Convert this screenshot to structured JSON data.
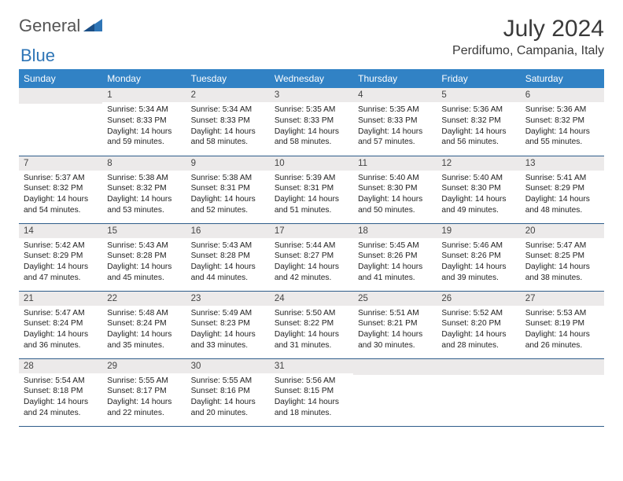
{
  "logo": {
    "text1": "General",
    "text2": "Blue"
  },
  "title": "July 2024",
  "location": "Perdifumo, Campania, Italy",
  "weekdays": [
    "Sunday",
    "Monday",
    "Tuesday",
    "Wednesday",
    "Thursday",
    "Friday",
    "Saturday"
  ],
  "colors": {
    "header_bg": "#3182c5",
    "header_text": "#ffffff",
    "band_bg": "#eceaea",
    "rule": "#2f5d8a",
    "logo_gray": "#555555",
    "logo_blue": "#2e75b6"
  },
  "grid": {
    "rows": 5,
    "cols": 7,
    "leading_blanks": 1,
    "days_in_month": 31
  },
  "days": {
    "1": {
      "sunrise": "5:34 AM",
      "sunset": "8:33 PM",
      "daylight": "14 hours and 59 minutes."
    },
    "2": {
      "sunrise": "5:34 AM",
      "sunset": "8:33 PM",
      "daylight": "14 hours and 58 minutes."
    },
    "3": {
      "sunrise": "5:35 AM",
      "sunset": "8:33 PM",
      "daylight": "14 hours and 58 minutes."
    },
    "4": {
      "sunrise": "5:35 AM",
      "sunset": "8:33 PM",
      "daylight": "14 hours and 57 minutes."
    },
    "5": {
      "sunrise": "5:36 AM",
      "sunset": "8:32 PM",
      "daylight": "14 hours and 56 minutes."
    },
    "6": {
      "sunrise": "5:36 AM",
      "sunset": "8:32 PM",
      "daylight": "14 hours and 55 minutes."
    },
    "7": {
      "sunrise": "5:37 AM",
      "sunset": "8:32 PM",
      "daylight": "14 hours and 54 minutes."
    },
    "8": {
      "sunrise": "5:38 AM",
      "sunset": "8:32 PM",
      "daylight": "14 hours and 53 minutes."
    },
    "9": {
      "sunrise": "5:38 AM",
      "sunset": "8:31 PM",
      "daylight": "14 hours and 52 minutes."
    },
    "10": {
      "sunrise": "5:39 AM",
      "sunset": "8:31 PM",
      "daylight": "14 hours and 51 minutes."
    },
    "11": {
      "sunrise": "5:40 AM",
      "sunset": "8:30 PM",
      "daylight": "14 hours and 50 minutes."
    },
    "12": {
      "sunrise": "5:40 AM",
      "sunset": "8:30 PM",
      "daylight": "14 hours and 49 minutes."
    },
    "13": {
      "sunrise": "5:41 AM",
      "sunset": "8:29 PM",
      "daylight": "14 hours and 48 minutes."
    },
    "14": {
      "sunrise": "5:42 AM",
      "sunset": "8:29 PM",
      "daylight": "14 hours and 47 minutes."
    },
    "15": {
      "sunrise": "5:43 AM",
      "sunset": "8:28 PM",
      "daylight": "14 hours and 45 minutes."
    },
    "16": {
      "sunrise": "5:43 AM",
      "sunset": "8:28 PM",
      "daylight": "14 hours and 44 minutes."
    },
    "17": {
      "sunrise": "5:44 AM",
      "sunset": "8:27 PM",
      "daylight": "14 hours and 42 minutes."
    },
    "18": {
      "sunrise": "5:45 AM",
      "sunset": "8:26 PM",
      "daylight": "14 hours and 41 minutes."
    },
    "19": {
      "sunrise": "5:46 AM",
      "sunset": "8:26 PM",
      "daylight": "14 hours and 39 minutes."
    },
    "20": {
      "sunrise": "5:47 AM",
      "sunset": "8:25 PM",
      "daylight": "14 hours and 38 minutes."
    },
    "21": {
      "sunrise": "5:47 AM",
      "sunset": "8:24 PM",
      "daylight": "14 hours and 36 minutes."
    },
    "22": {
      "sunrise": "5:48 AM",
      "sunset": "8:24 PM",
      "daylight": "14 hours and 35 minutes."
    },
    "23": {
      "sunrise": "5:49 AM",
      "sunset": "8:23 PM",
      "daylight": "14 hours and 33 minutes."
    },
    "24": {
      "sunrise": "5:50 AM",
      "sunset": "8:22 PM",
      "daylight": "14 hours and 31 minutes."
    },
    "25": {
      "sunrise": "5:51 AM",
      "sunset": "8:21 PM",
      "daylight": "14 hours and 30 minutes."
    },
    "26": {
      "sunrise": "5:52 AM",
      "sunset": "8:20 PM",
      "daylight": "14 hours and 28 minutes."
    },
    "27": {
      "sunrise": "5:53 AM",
      "sunset": "8:19 PM",
      "daylight": "14 hours and 26 minutes."
    },
    "28": {
      "sunrise": "5:54 AM",
      "sunset": "8:18 PM",
      "daylight": "14 hours and 24 minutes."
    },
    "29": {
      "sunrise": "5:55 AM",
      "sunset": "8:17 PM",
      "daylight": "14 hours and 22 minutes."
    },
    "30": {
      "sunrise": "5:55 AM",
      "sunset": "8:16 PM",
      "daylight": "14 hours and 20 minutes."
    },
    "31": {
      "sunrise": "5:56 AM",
      "sunset": "8:15 PM",
      "daylight": "14 hours and 18 minutes."
    }
  },
  "labels": {
    "sunrise": "Sunrise:",
    "sunset": "Sunset:",
    "daylight": "Daylight:"
  }
}
